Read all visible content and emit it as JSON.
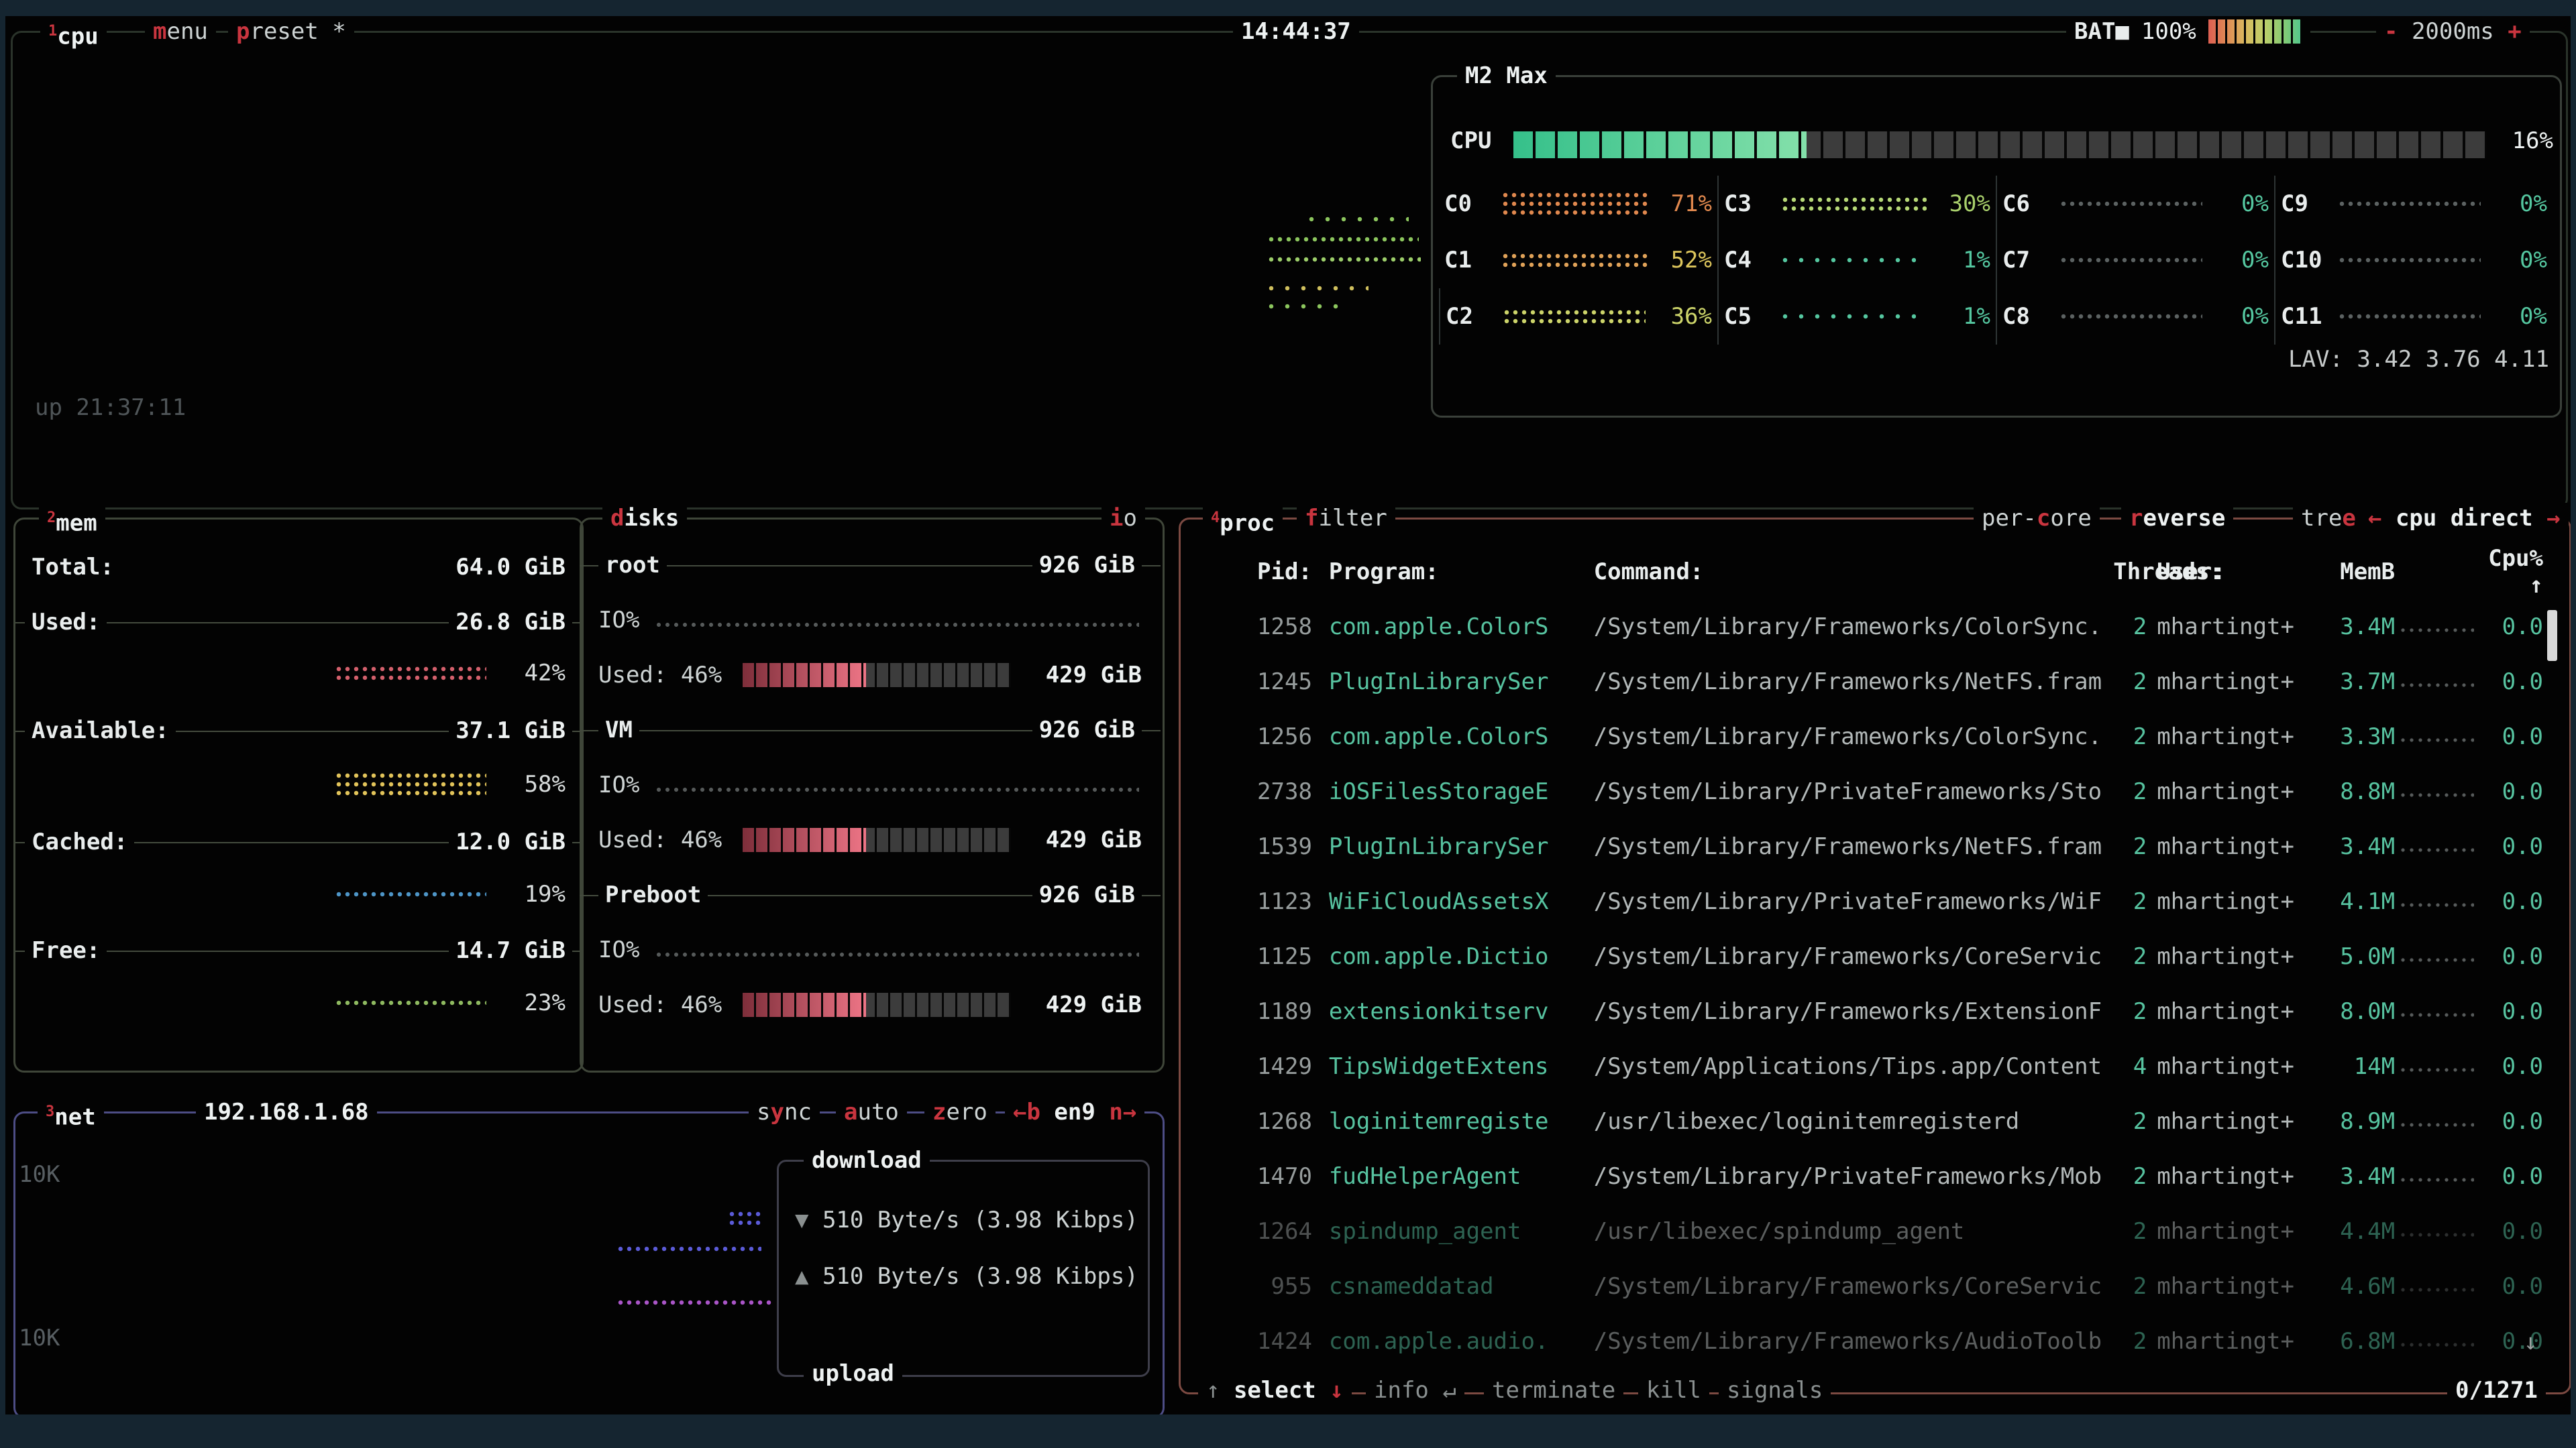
{
  "topbar": {
    "cpu_tab": [
      {
        "t": "1",
        "c": "sup"
      },
      {
        "t": "cpu",
        "c": "bright"
      }
    ],
    "menu": [
      {
        "t": "m",
        "c": "r"
      },
      {
        "t": "enu",
        "c": "w"
      }
    ],
    "preset": [
      {
        "t": "p",
        "c": "r"
      },
      {
        "t": "reset *",
        "c": "w"
      }
    ],
    "time": "14:44:37",
    "battery_label": "BAT■",
    "battery_pct": "100%",
    "rate": [
      {
        "t": "- ",
        "c": "r"
      },
      {
        "t": "2000ms",
        "c": "w"
      },
      {
        "t": " +",
        "c": "r"
      }
    ]
  },
  "cpu": {
    "box_title": "M2 Max",
    "meter_label": "CPU",
    "meter_pct": "16%",
    "uptime": "up 21:37:11",
    "lav": "LAV: 3.42 3.76 4.11",
    "cores": [
      {
        "name": "C0",
        "pct": "71%",
        "color": "#e0884e",
        "graph": "g-c0"
      },
      {
        "name": "C1",
        "pct": "52%",
        "color": "#dcc55c",
        "graph": "g-c1"
      },
      {
        "name": "C2",
        "pct": "36%",
        "color": "#ccd46a",
        "graph": "g-c2"
      },
      {
        "name": "C3",
        "pct": "30%",
        "color": "#a9d06c",
        "graph": "g-c3"
      },
      {
        "name": "C4",
        "pct": "1%",
        "color": "#55c7a0",
        "graph": "g-c4"
      },
      {
        "name": "C5",
        "pct": "1%",
        "color": "#55c7a0",
        "graph": "g-c5"
      },
      {
        "name": "C6",
        "pct": "0%",
        "color": "#55c7a0",
        "graph": "g-c6"
      },
      {
        "name": "C7",
        "pct": "0%",
        "color": "#55c7a0",
        "graph": "g-c7"
      },
      {
        "name": "C8",
        "pct": "0%",
        "color": "#55c7a0",
        "graph": "g-c8"
      },
      {
        "name": "C9",
        "pct": "0%",
        "color": "#55c7a0",
        "graph": "g-c9"
      },
      {
        "name": "C10",
        "pct": "0%",
        "color": "#55c7a0",
        "graph": "g-c10"
      },
      {
        "name": "C11",
        "pct": "0%",
        "color": "#55c7a0",
        "graph": "g-c11"
      }
    ]
  },
  "mem": {
    "tab": [
      {
        "t": "2",
        "c": "sup"
      },
      {
        "t": "mem",
        "c": "bright"
      }
    ],
    "total_label": "Total:",
    "total_value": "64.0 GiB",
    "rows": [
      {
        "label": "Used:",
        "value": "26.8 GiB",
        "pct": "42%",
        "color": "#d4606c"
      },
      {
        "label": "Available:",
        "value": "37.1 GiB",
        "pct": "58%",
        "color": "#e2c45a"
      },
      {
        "label": "Cached:",
        "value": "12.0 GiB",
        "pct": "19%",
        "color": "#4e96c8"
      },
      {
        "label": "Free:",
        "value": "14.7 GiB",
        "pct": "23%",
        "color": "#8fba60"
      }
    ]
  },
  "disks": {
    "tab": [
      {
        "t": "d",
        "c": "r"
      },
      {
        "t": "isks",
        "c": "bright"
      }
    ],
    "io_tab": [
      {
        "t": "i",
        "c": "r"
      },
      {
        "t": "o",
        "c": "w"
      }
    ],
    "sections": [
      {
        "name": "root",
        "size": "926 GiB",
        "io": "IO%",
        "used": "Used: 46%",
        "used_size": "429 GiB"
      },
      {
        "name": "VM",
        "size": "926 GiB",
        "io": "IO%",
        "used": "Used: 46%",
        "used_size": "429 GiB"
      },
      {
        "name": "Preboot",
        "size": "926 GiB",
        "io": "IO%",
        "used": "Used: 46%",
        "used_size": "429 GiB"
      }
    ]
  },
  "net": {
    "tab": [
      {
        "t": "3",
        "c": "sup"
      },
      {
        "t": "net",
        "c": "bright"
      }
    ],
    "address": "192.168.1.68",
    "buttons": {
      "sync": [
        {
          "t": "s",
          "c": "w"
        },
        {
          "t": "y",
          "c": "r"
        },
        {
          "t": "nc",
          "c": "w"
        }
      ],
      "auto": [
        {
          "t": "a",
          "c": "r"
        },
        {
          "t": "uto",
          "c": "w"
        }
      ],
      "zero": [
        {
          "t": "z",
          "c": "r"
        },
        {
          "t": "ero",
          "c": "w"
        }
      ],
      "iface": [
        {
          "t": "←b",
          "c": "r"
        },
        {
          "t": " en9 ",
          "c": "bright"
        },
        {
          "t": "n→",
          "c": "r"
        }
      ]
    },
    "scale_top": "10K",
    "scale_bottom": "10K",
    "download_title": "download",
    "upload_title": "upload",
    "download_row": [
      {
        "t": "▼ ",
        "c": "dim"
      },
      {
        "t": "510 Byte/s (3.98 Kibps)",
        "c": "w"
      }
    ],
    "upload_row": [
      {
        "t": "▲ ",
        "c": "dim"
      },
      {
        "t": "510 Byte/s (3.98 Kibps)",
        "c": "w"
      }
    ]
  },
  "proc": {
    "tab": [
      {
        "t": "4",
        "c": "sup"
      },
      {
        "t": "proc",
        "c": "bright"
      }
    ],
    "filter_tab": [
      {
        "t": "f",
        "c": "r"
      },
      {
        "t": "ilter",
        "c": "w"
      }
    ],
    "percore_tab": [
      {
        "t": "per-",
        "c": "w"
      },
      {
        "t": "c",
        "c": "r"
      },
      {
        "t": "ore",
        "c": "w"
      }
    ],
    "reverse_tab": [
      {
        "t": "r",
        "c": "r"
      },
      {
        "t": "everse",
        "c": "bright"
      }
    ],
    "tree_tab": [
      {
        "t": "tre",
        "c": "w"
      },
      {
        "t": "e",
        "c": "r"
      }
    ],
    "sort_tab": [
      {
        "t": "← ",
        "c": "r"
      },
      {
        "t": "cpu direct",
        "c": "bright"
      },
      {
        "t": " →",
        "c": "r"
      }
    ],
    "headers": {
      "pid": "Pid:",
      "program": "Program:",
      "command": "Command:",
      "threads": "Threads:",
      "user": "User:",
      "mem": "MemB",
      "cpu": "Cpu% ↑"
    },
    "rows": [
      {
        "pid": "1258",
        "program": "com.apple.ColorS",
        "command": "/System/Library/Frameworks/ColorSync.",
        "threads": "2",
        "user": "mhartingt+",
        "mem": "3.4M",
        "cpu": "0.0"
      },
      {
        "pid": "1245",
        "program": "PlugInLibrarySer",
        "command": "/System/Library/Frameworks/NetFS.fram",
        "threads": "2",
        "user": "mhartingt+",
        "mem": "3.7M",
        "cpu": "0.0"
      },
      {
        "pid": "1256",
        "program": "com.apple.ColorS",
        "command": "/System/Library/Frameworks/ColorSync.",
        "threads": "2",
        "user": "mhartingt+",
        "mem": "3.3M",
        "cpu": "0.0"
      },
      {
        "pid": "2738",
        "program": "iOSFilesStorageE",
        "command": "/System/Library/PrivateFrameworks/Sto",
        "threads": "2",
        "user": "mhartingt+",
        "mem": "8.8M",
        "cpu": "0.0"
      },
      {
        "pid": "1539",
        "program": "PlugInLibrarySer",
        "command": "/System/Library/Frameworks/NetFS.fram",
        "threads": "2",
        "user": "mhartingt+",
        "mem": "3.4M",
        "cpu": "0.0"
      },
      {
        "pid": "1123",
        "program": "WiFiCloudAssetsX",
        "command": "/System/Library/PrivateFrameworks/WiF",
        "threads": "2",
        "user": "mhartingt+",
        "mem": "4.1M",
        "cpu": "0.0"
      },
      {
        "pid": "1125",
        "program": "com.apple.Dictio",
        "command": "/System/Library/Frameworks/CoreServic",
        "threads": "2",
        "user": "mhartingt+",
        "mem": "5.0M",
        "cpu": "0.0"
      },
      {
        "pid": "1189",
        "program": "extensionkitserv",
        "command": "/System/Library/Frameworks/ExtensionF",
        "threads": "2",
        "user": "mhartingt+",
        "mem": "8.0M",
        "cpu": "0.0"
      },
      {
        "pid": "1429",
        "program": "TipsWidgetExtens",
        "command": "/System/Applications/Tips.app/Content",
        "threads": "4",
        "user": "mhartingt+",
        "mem": "14M",
        "cpu": "0.0"
      },
      {
        "pid": "1268",
        "program": "loginitemregiste",
        "command": "/usr/libexec/loginitemregisterd",
        "threads": "2",
        "user": "mhartingt+",
        "mem": "8.9M",
        "cpu": "0.0"
      },
      {
        "pid": "1470",
        "program": "fudHelperAgent",
        "command": "/System/Library/PrivateFrameworks/Mob",
        "threads": "2",
        "user": "mhartingt+",
        "mem": "3.4M",
        "cpu": "0.0"
      },
      {
        "pid": "1264",
        "program": "spindump_agent",
        "command": "/usr/libexec/spindump_agent",
        "threads": "2",
        "user": "mhartingt+",
        "mem": "4.4M",
        "cpu": "0.0",
        "dim": true
      },
      {
        "pid": "955",
        "program": "csnameddatad",
        "command": "/System/Library/Frameworks/CoreServic",
        "threads": "2",
        "user": "mhartingt+",
        "mem": "4.6M",
        "cpu": "0.0",
        "dim": true
      },
      {
        "pid": "1424",
        "program": "com.apple.audio.",
        "command": "/System/Library/Frameworks/AudioToolb",
        "threads": "2",
        "user": "mhartingt+",
        "mem": "6.8M",
        "cpu": "0.0",
        "dim": true
      }
    ],
    "footer": {
      "select": [
        {
          "t": "↑ ",
          "c": "dim"
        },
        {
          "t": "select",
          "c": "bright"
        },
        {
          "t": " ",
          "c": "w"
        },
        {
          "t": "↓",
          "c": "r"
        }
      ],
      "info": [
        {
          "t": "info ",
          "c": "dim"
        },
        {
          "t": "↵",
          "c": "dim"
        }
      ],
      "terminate": [
        {
          "t": "terminate",
          "c": "dim"
        }
      ],
      "kill": [
        {
          "t": "kill",
          "c": "dim"
        }
      ],
      "signals": [
        {
          "t": "signals",
          "c": "dim"
        }
      ],
      "count": "0/1271",
      "more_icon": "↓"
    }
  }
}
